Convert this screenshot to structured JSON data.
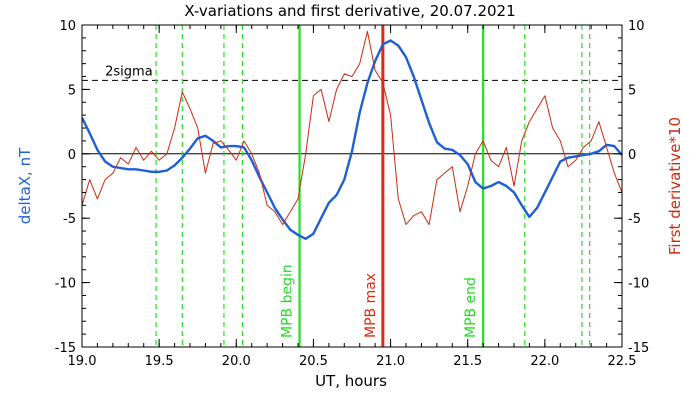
{
  "chart_data": {
    "type": "line",
    "title": "X-variations and first derivative, 20.07.2021",
    "xlabel": "UT, hours",
    "ylabel_left": "deltaX, nT",
    "ylabel_right": "First derivative*10",
    "xlim": [
      19.0,
      22.5
    ],
    "ylim": [
      -15,
      10
    ],
    "x_ticks": [
      "19.0",
      "19.5",
      "20.0",
      "20.5",
      "21.0",
      "21.5",
      "22.0",
      "22.5"
    ],
    "y_ticks": [
      "10",
      "5",
      "0",
      "-5",
      "-10",
      "-15"
    ],
    "colors": {
      "deltaX": "#1f5fd6",
      "derivative": "#cc2a10",
      "markers": "#22e022",
      "mpb_max": "#e02a10",
      "threshold": "#000000",
      "text_green": "#22dd22"
    },
    "threshold": {
      "label": "2sigma",
      "value": 5.7
    },
    "zero_line": 0,
    "dashed_lines_x": [
      19.48,
      19.65,
      19.92,
      20.04,
      21.87,
      22.24,
      22.29
    ],
    "markers": [
      {
        "label": "MPB begin",
        "x": 20.41
      },
      {
        "label": "MPB max",
        "x": 20.95
      },
      {
        "label": "MPB end",
        "x": 21.6
      }
    ],
    "series": [
      {
        "key": "deltaX",
        "x": [
          19.0,
          19.05,
          19.1,
          19.15,
          19.2,
          19.25,
          19.3,
          19.35,
          19.4,
          19.45,
          19.5,
          19.55,
          19.6,
          19.65,
          19.7,
          19.75,
          19.8,
          19.85,
          19.9,
          19.95,
          20.0,
          20.05,
          20.1,
          20.15,
          20.2,
          20.25,
          20.3,
          20.35,
          20.4,
          20.45,
          20.5,
          20.55,
          20.6,
          20.65,
          20.7,
          20.75,
          20.8,
          20.85,
          20.9,
          20.95,
          21.0,
          21.05,
          21.1,
          21.15,
          21.2,
          21.25,
          21.3,
          21.35,
          21.4,
          21.45,
          21.5,
          21.55,
          21.6,
          21.65,
          21.7,
          21.75,
          21.8,
          21.85,
          21.9,
          21.95,
          22.0,
          22.05,
          22.1,
          22.15,
          22.2,
          22.25,
          22.3,
          22.35,
          22.4,
          22.45,
          22.5
        ],
        "y": [
          2.8,
          1.6,
          0.3,
          -0.6,
          -1.0,
          -1.1,
          -1.2,
          -1.2,
          -1.3,
          -1.4,
          -1.4,
          -1.3,
          -0.9,
          -0.3,
          0.4,
          1.2,
          1.4,
          1.0,
          0.5,
          0.6,
          0.6,
          0.5,
          -0.5,
          -1.8,
          -3.0,
          -4.2,
          -5.1,
          -5.9,
          -6.3,
          -6.6,
          -6.2,
          -5.0,
          -3.8,
          -3.2,
          -2.0,
          0.2,
          3.2,
          5.5,
          7.2,
          8.5,
          8.8,
          8.4,
          7.5,
          6.0,
          4.2,
          2.4,
          0.9,
          0.4,
          0.3,
          -0.1,
          -0.8,
          -2.2,
          -2.7,
          -2.5,
          -2.2,
          -2.5,
          -3.0,
          -4.0,
          -4.9,
          -4.2,
          -3.0,
          -1.8,
          -0.6,
          -0.3,
          -0.2,
          -0.1,
          0.0,
          0.2,
          0.7,
          0.6,
          -0.1
        ]
      },
      {
        "key": "derivative",
        "x": [
          19.0,
          19.05,
          19.1,
          19.15,
          19.2,
          19.25,
          19.3,
          19.35,
          19.4,
          19.45,
          19.5,
          19.55,
          19.6,
          19.65,
          19.7,
          19.75,
          19.8,
          19.85,
          19.9,
          19.95,
          20.0,
          20.05,
          20.1,
          20.15,
          20.2,
          20.25,
          20.3,
          20.35,
          20.4,
          20.45,
          20.5,
          20.55,
          20.6,
          20.65,
          20.7,
          20.75,
          20.8,
          20.85,
          20.9,
          20.95,
          21.0,
          21.05,
          21.1,
          21.15,
          21.2,
          21.25,
          21.3,
          21.35,
          21.4,
          21.45,
          21.5,
          21.55,
          21.6,
          21.65,
          21.7,
          21.75,
          21.8,
          21.85,
          21.9,
          21.95,
          22.0,
          22.05,
          22.1,
          22.15,
          22.2,
          22.25,
          22.3,
          22.35,
          22.4,
          22.45,
          22.5
        ],
        "y": [
          -4.0,
          -2.0,
          -3.5,
          -2.0,
          -1.5,
          -0.3,
          -0.8,
          0.5,
          -0.5,
          0.2,
          -0.5,
          0.0,
          2.0,
          4.8,
          3.5,
          2.0,
          -1.5,
          0.8,
          1.0,
          0.3,
          -0.5,
          1.0,
          0.0,
          -1.5,
          -4.0,
          -4.5,
          -5.5,
          -4.5,
          -3.5,
          0.0,
          4.5,
          5.0,
          2.5,
          5.0,
          6.2,
          6.0,
          7.0,
          9.5,
          6.5,
          5.5,
          3.0,
          -3.5,
          -5.5,
          -4.8,
          -4.5,
          -5.5,
          -2.0,
          -1.5,
          -1.0,
          -4.5,
          -2.5,
          0.0,
          1.0,
          -0.5,
          -1.0,
          0.5,
          -2.5,
          1.0,
          2.5,
          3.5,
          4.5,
          2.0,
          1.0,
          -1.0,
          -0.5,
          0.5,
          1.0,
          2.5,
          0.5,
          -1.5,
          -3.0
        ]
      }
    ]
  }
}
